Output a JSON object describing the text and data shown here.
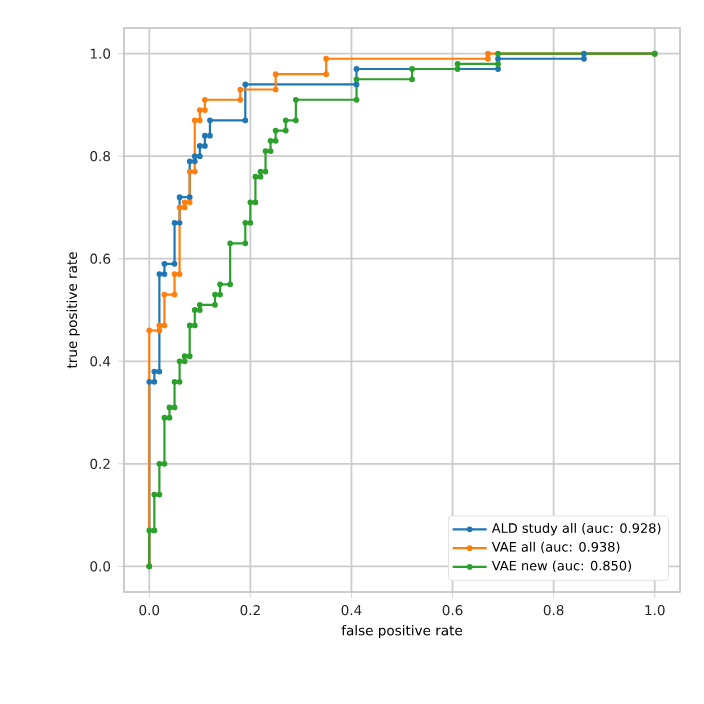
{
  "chart_data": {
    "type": "line",
    "xlabel": "false positive rate",
    "ylabel": "true positive rate",
    "xlim": [
      -0.05,
      1.05
    ],
    "ylim": [
      -0.05,
      1.05
    ],
    "xticks": [
      {
        "value": 0,
        "label": "0.0"
      },
      {
        "value": 0.2,
        "label": "0.2"
      },
      {
        "value": 0.4,
        "label": "0.4"
      },
      {
        "value": 0.6,
        "label": "0.6"
      },
      {
        "value": 0.8,
        "label": "0.8"
      },
      {
        "value": 1,
        "label": "1.0"
      }
    ],
    "yticks": [
      {
        "value": 0,
        "label": "0.0"
      },
      {
        "value": 0.2,
        "label": "0.2"
      },
      {
        "value": 0.4,
        "label": "0.4"
      },
      {
        "value": 0.6,
        "label": "0.6"
      },
      {
        "value": 0.8,
        "label": "0.8"
      },
      {
        "value": 1,
        "label": "1.0"
      }
    ],
    "grid": true,
    "legend": "bottom right",
    "marker": "circle",
    "line_style": "solid",
    "series": [
      {
        "name": "ALD study all (auc: 0.928)",
        "color": "#1f77b4",
        "x": [
          0,
          0,
          0.01,
          0.01,
          0.02,
          0.02,
          0.03,
          0.03,
          0.05,
          0.05,
          0.06,
          0.06,
          0.08,
          0.08,
          0.09,
          0.09,
          0.1,
          0.1,
          0.11,
          0.11,
          0.12,
          0.12,
          0.19,
          0.19,
          0.41,
          0.41,
          0.69,
          0.69,
          0.86,
          0.86,
          1
        ],
        "values": [
          0,
          0.36,
          0.36,
          0.38,
          0.38,
          0.57,
          0.57,
          0.59,
          0.59,
          0.67,
          0.67,
          0.72,
          0.72,
          0.79,
          0.79,
          0.8,
          0.8,
          0.82,
          0.82,
          0.84,
          0.84,
          0.87,
          0.87,
          0.94,
          0.94,
          0.97,
          0.97,
          0.99,
          0.99,
          1,
          1
        ]
      },
      {
        "name": "VAE all (auc: 0.938)",
        "color": "#ff7f0e",
        "x": [
          0,
          0,
          0.02,
          0.02,
          0.03,
          0.03,
          0.05,
          0.05,
          0.06,
          0.06,
          0.07,
          0.07,
          0.08,
          0.08,
          0.09,
          0.09,
          0.1,
          0.1,
          0.11,
          0.11,
          0.18,
          0.18,
          0.25,
          0.25,
          0.35,
          0.35,
          0.67,
          0.67,
          1
        ],
        "values": [
          0,
          0.46,
          0.46,
          0.47,
          0.47,
          0.53,
          0.53,
          0.57,
          0.57,
          0.7,
          0.7,
          0.71,
          0.71,
          0.77,
          0.77,
          0.87,
          0.87,
          0.89,
          0.89,
          0.91,
          0.91,
          0.93,
          0.93,
          0.96,
          0.96,
          0.99,
          0.99,
          1,
          1
        ]
      },
      {
        "name": "VAE new (auc: 0.850)",
        "color": "#2ca02c",
        "x": [
          0,
          0,
          0.01,
          0.01,
          0.02,
          0.02,
          0.03,
          0.03,
          0.04,
          0.04,
          0.05,
          0.05,
          0.06,
          0.06,
          0.07,
          0.07,
          0.08,
          0.08,
          0.09,
          0.09,
          0.1,
          0.1,
          0.13,
          0.13,
          0.14,
          0.14,
          0.16,
          0.16,
          0.19,
          0.19,
          0.2,
          0.2,
          0.21,
          0.21,
          0.22,
          0.22,
          0.23,
          0.23,
          0.24,
          0.24,
          0.25,
          0.25,
          0.27,
          0.27,
          0.29,
          0.29,
          0.41,
          0.41,
          0.52,
          0.52,
          0.61,
          0.61,
          0.69,
          0.69,
          1
        ],
        "values": [
          0,
          0.07,
          0.07,
          0.14,
          0.14,
          0.2,
          0.2,
          0.29,
          0.29,
          0.31,
          0.31,
          0.36,
          0.36,
          0.4,
          0.4,
          0.41,
          0.41,
          0.47,
          0.47,
          0.5,
          0.5,
          0.51,
          0.51,
          0.53,
          0.53,
          0.55,
          0.55,
          0.63,
          0.63,
          0.67,
          0.67,
          0.71,
          0.71,
          0.76,
          0.76,
          0.77,
          0.77,
          0.81,
          0.81,
          0.83,
          0.83,
          0.85,
          0.85,
          0.87,
          0.87,
          0.91,
          0.91,
          0.95,
          0.95,
          0.97,
          0.97,
          0.98,
          0.98,
          1,
          1
        ]
      }
    ]
  }
}
